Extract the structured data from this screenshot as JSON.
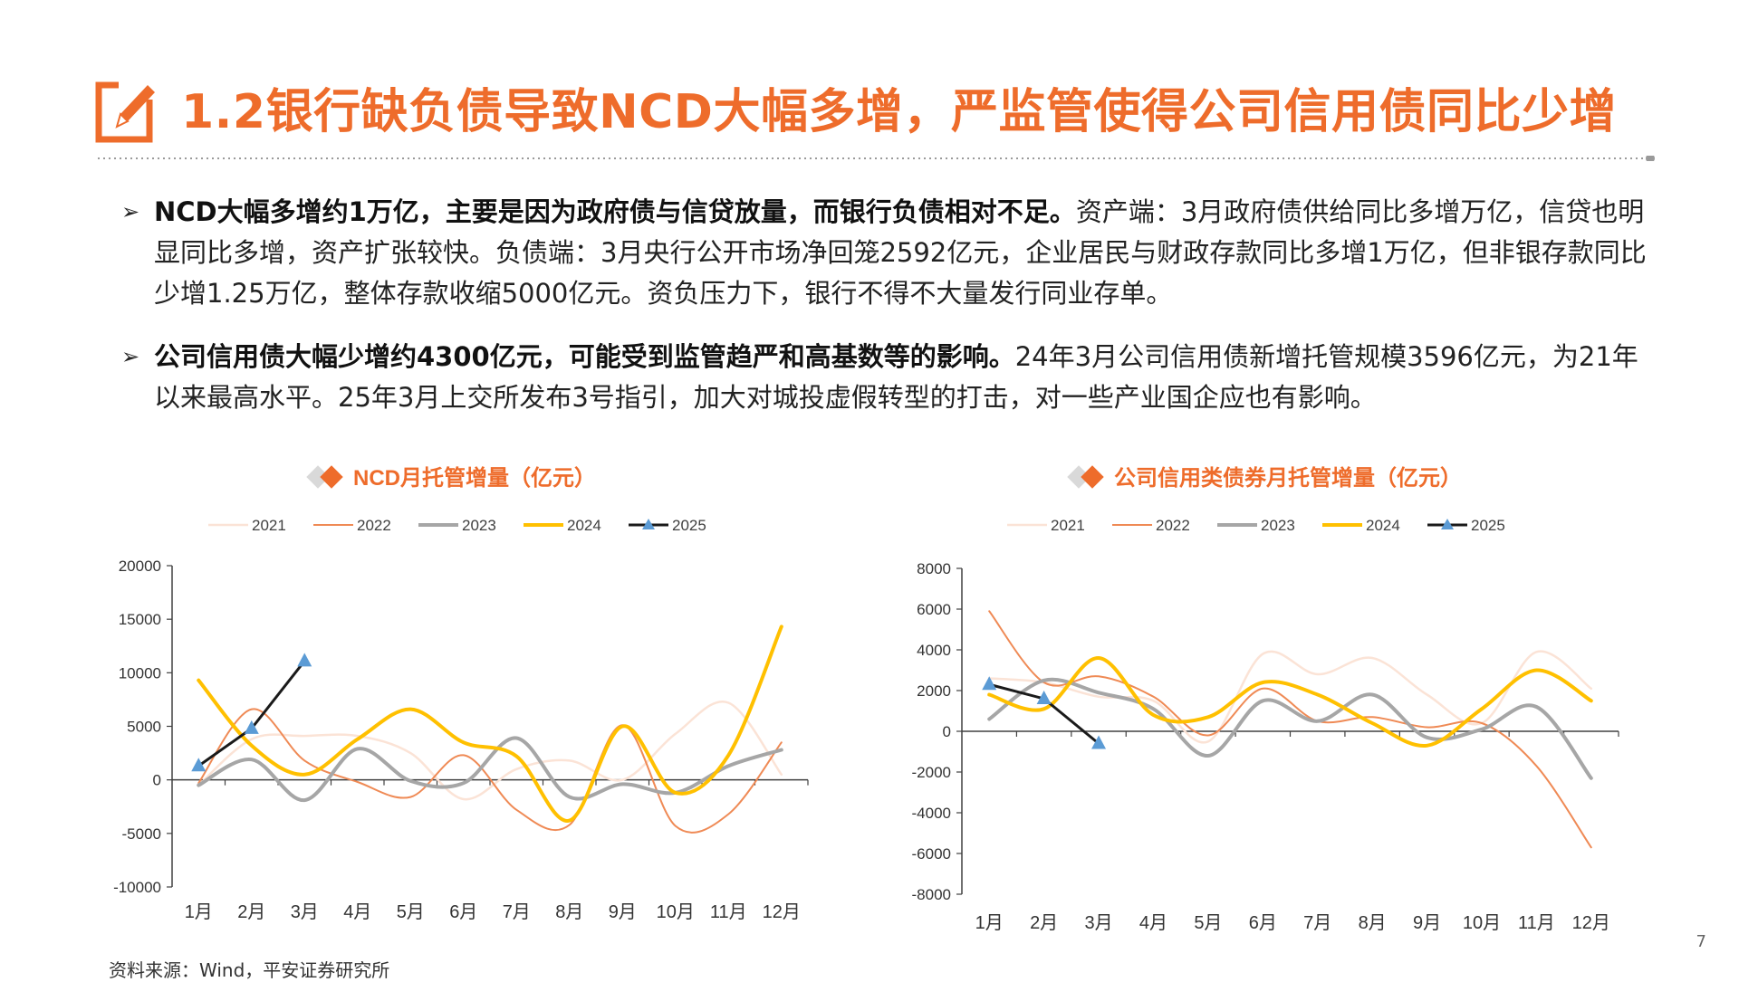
{
  "header": {
    "title": "1.2银行缺负债导致NCD大幅多增，严监管使得公司信用债同比少增"
  },
  "bullets": [
    {
      "bold": "NCD大幅多增约1万亿，主要是因为政府债与信贷放量，而银行负债相对不足。",
      "text": "资产端：3月政府债供给同比多增万亿，信贷也明显同比多增，资产扩张较快。负债端：3月央行公开市场净回笼2592亿元，企业居民与财政存款同比多增1万亿，但非银存款同比少增1.25万亿，整体存款收缩5000亿元。资负压力下，银行不得不大量发行同业存单。"
    },
    {
      "bold": "公司信用债大幅少增约4300亿元，可能受到监管趋严和高基数等的影响。",
      "text": "24年3月公司信用债新增托管规模3596亿元，为21年以来最高水平。25年3月上交所发布3号指引，加大对城投虚假转型的打击，对一些产业国企应也有影响。"
    }
  ],
  "source": "资料来源：Wind，平安证券研究所",
  "page_number": "7",
  "colors": {
    "accent": "#ee6c2b",
    "diamond_gray": "#d9d9d9"
  },
  "chart_data": [
    {
      "type": "line",
      "title": "NCD月托管增量（亿元）",
      "categories": [
        "1月",
        "2月",
        "3月",
        "4月",
        "5月",
        "6月",
        "7月",
        "8月",
        "9月",
        "10月",
        "11月",
        "12月"
      ],
      "yticks": [
        "20000",
        "15000",
        "10000",
        "5000",
        "0",
        "-5000",
        "-10000"
      ],
      "ylim": [
        -10000,
        20000
      ],
      "legend_position": "top",
      "series": [
        {
          "name": "2021",
          "color": "#fbe3d6",
          "width": 2.5,
          "values": [
            -500,
            3800,
            4100,
            4100,
            2500,
            -1800,
            1000,
            1800,
            0,
            4300,
            7200,
            500
          ]
        },
        {
          "name": "2022",
          "color": "#ef8a55",
          "width": 2,
          "values": [
            -300,
            6600,
            1800,
            -200,
            -1600,
            2300,
            -2800,
            -4200,
            5100,
            -4300,
            -3200,
            3500
          ]
        },
        {
          "name": "2023",
          "color": "#a6a6a6",
          "width": 4,
          "values": [
            -500,
            1900,
            -1900,
            2900,
            -100,
            -300,
            3900,
            -1600,
            -400,
            -1200,
            1300,
            2800
          ]
        },
        {
          "name": "2024",
          "color": "#ffc000",
          "width": 4,
          "values": [
            9300,
            3200,
            500,
            3800,
            6600,
            3500,
            2200,
            -3800,
            5000,
            -1200,
            2300,
            14300
          ]
        },
        {
          "name": "2025",
          "color": "#1a1a1a",
          "width": 3,
          "marker": "triangle",
          "marker_color": "#5b9bd5",
          "values": [
            1300,
            4800,
            11100,
            null,
            null,
            null,
            null,
            null,
            null,
            null,
            null,
            null
          ]
        }
      ]
    },
    {
      "type": "line",
      "title": "公司信用类债券月托管增量（亿元）",
      "categories": [
        "1月",
        "2月",
        "3月",
        "4月",
        "5月",
        "6月",
        "7月",
        "8月",
        "9月",
        "10月",
        "11月",
        "12月"
      ],
      "yticks": [
        "8000",
        "6000",
        "4000",
        "2000",
        "0",
        "-2000",
        "-4000",
        "-6000",
        "-8000"
      ],
      "ylim": [
        -8000,
        8000
      ],
      "legend_position": "top",
      "series": [
        {
          "name": "2021",
          "color": "#fbe3d6",
          "width": 2.5,
          "values": [
            2600,
            2400,
            1700,
            1500,
            -500,
            3800,
            2800,
            3600,
            1800,
            400,
            3900,
            2100
          ]
        },
        {
          "name": "2022",
          "color": "#ef8a55",
          "width": 2,
          "values": [
            5900,
            2400,
            2700,
            1700,
            -200,
            2100,
            500,
            700,
            200,
            400,
            -1700,
            -5700
          ]
        },
        {
          "name": "2023",
          "color": "#a6a6a6",
          "width": 4,
          "values": [
            600,
            2500,
            1900,
            1100,
            -1200,
            1500,
            500,
            1800,
            -300,
            100,
            1200,
            -2300
          ]
        },
        {
          "name": "2024",
          "color": "#ffc000",
          "width": 4,
          "values": [
            1800,
            1100,
            3600,
            800,
            700,
            2400,
            1800,
            400,
            -700,
            1100,
            3000,
            1500
          ]
        },
        {
          "name": "2025",
          "color": "#1a1a1a",
          "width": 3,
          "marker": "triangle",
          "marker_color": "#5b9bd5",
          "values": [
            2300,
            1600,
            -600,
            null,
            null,
            null,
            null,
            null,
            null,
            null,
            null,
            null
          ]
        }
      ]
    }
  ]
}
